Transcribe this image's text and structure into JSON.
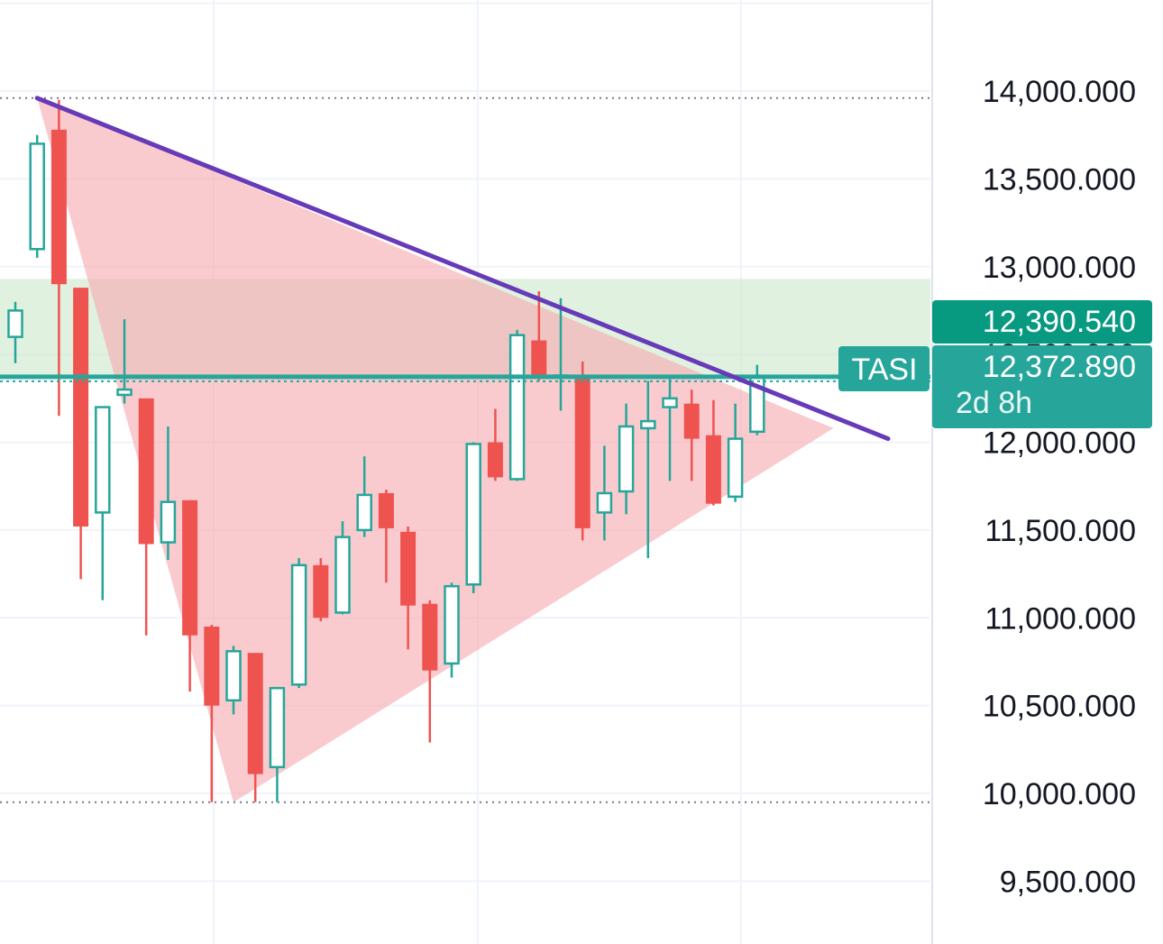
{
  "chart_data": {
    "type": "candlestick",
    "symbol": "TASI",
    "ylim": [
      9200,
      14500
    ],
    "y_ticks": [
      "9,500.000",
      "10,000.000",
      "10,500.000",
      "11,000.000",
      "11,500.000",
      "12,000.000",
      "12,500.000",
      "13,000.000",
      "13,500.000",
      "14,000.000"
    ],
    "y_tick_values": [
      9500,
      10000,
      10500,
      11000,
      11500,
      12000,
      12500,
      13000,
      13500,
      14000
    ],
    "candles": [
      {
        "o": 12600,
        "h": 12800,
        "l": 12450,
        "c": 12750
      },
      {
        "o": 13100,
        "h": 13750,
        "l": 13050,
        "c": 13700
      },
      {
        "o": 13780,
        "h": 13950,
        "l": 12150,
        "c": 12900
      },
      {
        "o": 12880,
        "h": 12880,
        "l": 11220,
        "c": 11520
      },
      {
        "o": 11600,
        "h": 12200,
        "l": 11100,
        "c": 12200
      },
      {
        "o": 12270,
        "h": 12700,
        "l": 12220,
        "c": 12300
      },
      {
        "o": 12250,
        "h": 12250,
        "l": 10900,
        "c": 11420
      },
      {
        "o": 11430,
        "h": 12090,
        "l": 11330,
        "c": 11660
      },
      {
        "o": 11670,
        "h": 11670,
        "l": 10580,
        "c": 10900
      },
      {
        "o": 10950,
        "h": 10960,
        "l": 9950,
        "c": 10500
      },
      {
        "o": 10530,
        "h": 10840,
        "l": 10450,
        "c": 10810
      },
      {
        "o": 10800,
        "h": 10800,
        "l": 9950,
        "c": 10110
      },
      {
        "o": 10150,
        "h": 10550,
        "l": 9950,
        "c": 10600
      },
      {
        "o": 10620,
        "h": 11340,
        "l": 10600,
        "c": 11300
      },
      {
        "o": 11300,
        "h": 11340,
        "l": 10980,
        "c": 11000
      },
      {
        "o": 11030,
        "h": 11550,
        "l": 11020,
        "c": 11460
      },
      {
        "o": 11500,
        "h": 11920,
        "l": 11460,
        "c": 11700
      },
      {
        "o": 11710,
        "h": 11730,
        "l": 11200,
        "c": 11510
      },
      {
        "o": 11490,
        "h": 11520,
        "l": 10820,
        "c": 11070
      },
      {
        "o": 11080,
        "h": 11100,
        "l": 10290,
        "c": 10700
      },
      {
        "o": 10740,
        "h": 11200,
        "l": 10660,
        "c": 11180
      },
      {
        "o": 11190,
        "h": 12000,
        "l": 11140,
        "c": 11990
      },
      {
        "o": 12000,
        "h": 12190,
        "l": 11780,
        "c": 11800
      },
      {
        "o": 11790,
        "h": 12640,
        "l": 11780,
        "c": 12610
      },
      {
        "o": 12580,
        "h": 12860,
        "l": 12350,
        "c": 12370
      },
      {
        "o": 12370,
        "h": 12820,
        "l": 12180,
        "c": 12380
      },
      {
        "o": 12370,
        "h": 12460,
        "l": 11440,
        "c": 11510
      },
      {
        "o": 11600,
        "h": 11980,
        "l": 11440,
        "c": 11710
      },
      {
        "o": 11720,
        "h": 12220,
        "l": 11590,
        "c": 12090
      },
      {
        "o": 12080,
        "h": 12350,
        "l": 11340,
        "c": 12120
      },
      {
        "o": 12200,
        "h": 12360,
        "l": 11780,
        "c": 12250
      },
      {
        "o": 12220,
        "h": 12300,
        "l": 11780,
        "c": 12020
      },
      {
        "o": 12040,
        "h": 12240,
        "l": 11640,
        "c": 11650
      },
      {
        "o": 11690,
        "h": 12220,
        "l": 11660,
        "c": 12020
      },
      {
        "o": 12060,
        "h": 12440,
        "l": 12040,
        "c": 12372.89
      }
    ],
    "trendline": {
      "from": {
        "bar": 1,
        "value": 13960
      },
      "to": {
        "bar": 40,
        "value": 12020
      }
    },
    "triangle_fill": [
      {
        "bar": 1,
        "value": 13960
      },
      {
        "bar": 10,
        "value": 9950
      },
      {
        "bar": 37.5,
        "value": 12080
      }
    ],
    "zone": {
      "top": 12930,
      "bottom": 12370
    },
    "levels": [
      {
        "value": 13960,
        "style": "dotted"
      },
      {
        "value": 9950,
        "style": "dotted"
      }
    ],
    "price_line": 12372.89,
    "labels": {
      "upper_price": "12,390.540",
      "last_price": "12,372.890",
      "countdown": "2d 8h",
      "symbol": "TASI"
    },
    "colors": {
      "up": "#26a69a",
      "down": "#ef5350",
      "trend": "#673ab7",
      "triangle": "#f7a9ae",
      "zone": "#cfe9cf",
      "upper_tag": "#089981",
      "last_tag": "#26a69a",
      "grid": "#f0f3fa",
      "level": "#787b86"
    }
  }
}
